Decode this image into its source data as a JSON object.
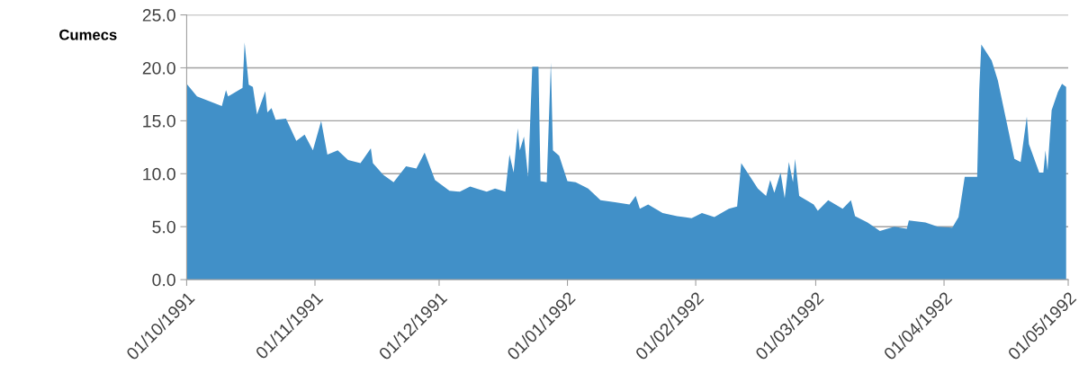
{
  "chart_data": {
    "type": "area",
    "ylabel": "Cumecs",
    "x": [
      "1991-10-01",
      "1991-10-03T12:00",
      "1991-10-09T12:00",
      "1991-10-10T12:00",
      "1991-10-11",
      "1991-10-14T12:00",
      "1991-10-15",
      "1991-10-16",
      "1991-10-17",
      "1991-10-18",
      "1991-10-20",
      "1991-10-20T12:00",
      "1991-10-21T12:00",
      "1991-10-22T12:00",
      "1991-10-25",
      "1991-10-27T12:00",
      "1991-10-29T12:00",
      "1991-10-31T12:00",
      "1991-11-02T12:00",
      "1991-11-04",
      "1991-11-06T12:00",
      "1991-11-09",
      "1991-11-12",
      "1991-11-14T12:00",
      "1991-11-15",
      "1991-11-17T12:00",
      "1991-11-20",
      "1991-11-23",
      "1991-11-25T12:00",
      "1991-11-27T12:00",
      "1991-11-30",
      "1991-12-03T12:00",
      "1991-12-06",
      "1991-12-08T12:00",
      "1991-12-10",
      "1991-12-12T12:00",
      "1991-12-14T12:00",
      "1991-12-17",
      "1991-12-18",
      "1991-12-19",
      "1991-12-20",
      "1991-12-20T12:00",
      "1991-12-21T12:00",
      "1991-12-22T12:00",
      "1991-12-23T12:00",
      "1991-12-25",
      "1991-12-25T12:00",
      "1991-12-27",
      "1991-12-28",
      "1991-12-28T12:00",
      "1991-12-30",
      "1992-01-01",
      "1992-01-03",
      "1992-01-06",
      "1992-01-09",
      "1992-01-12T12:00",
      "1992-01-16",
      "1992-01-17T12:00",
      "1992-01-18T12:00",
      "1992-01-20T12:00",
      "1992-01-24",
      "1992-01-27T12:00",
      "1992-01-31",
      "1992-02-02T12:00",
      "1992-02-05T12:00",
      "1992-02-09",
      "1992-02-11",
      "1992-02-12",
      "1992-02-13T12:00",
      "1992-02-16",
      "1992-02-18",
      "1992-02-19",
      "1992-02-20",
      "1992-02-21T12:00",
      "1992-02-22T12:00",
      "1992-02-23T12:00",
      "1992-02-24T12:00",
      "1992-02-25",
      "1992-02-26",
      "1992-02-29T12:00",
      "1992-03-01T12:00",
      "1992-03-04",
      "1992-03-07T12:00",
      "1992-03-09T12:00",
      "1992-03-10T12:00",
      "1992-03-13T12:00",
      "1992-03-16T12:00",
      "1992-03-20",
      "1992-03-23",
      "1992-03-23T12:00",
      "1992-03-27T12:00",
      "1992-03-30T12:00",
      "1992-04-03",
      "1992-04-04T12:00",
      "1992-04-06",
      "1992-04-09",
      "1992-04-09T12:00",
      "1992-04-10",
      "1992-04-12T12:00",
      "1992-04-14",
      "1992-04-16",
      "1992-04-18",
      "1992-04-19T12:00",
      "1992-04-21",
      "1992-04-21T12:00",
      "1992-04-24",
      "1992-04-25",
      "1992-04-25T12:00",
      "1992-04-26",
      "1992-04-27",
      "1992-04-28T12:00",
      "1992-04-29T12:00",
      "1992-04-30T12:00"
    ],
    "values": [
      18.5,
      17.3,
      16.4,
      17.9,
      17.3,
      18.1,
      22.4,
      18.4,
      18.2,
      15.6,
      17.8,
      15.8,
      16.2,
      15.1,
      15.2,
      13.1,
      13.7,
      12.2,
      15.0,
      11.8,
      12.2,
      11.3,
      11.0,
      12.4,
      11.0,
      9.9,
      9.2,
      10.7,
      10.5,
      12.0,
      9.4,
      8.4,
      8.3,
      8.8,
      8.6,
      8.3,
      8.6,
      8.3,
      11.8,
      10.1,
      14.3,
      12.2,
      13.5,
      9.7,
      20.1,
      20.1,
      9.3,
      9.2,
      20.5,
      12.2,
      11.7,
      9.3,
      9.2,
      8.6,
      7.5,
      7.3,
      7.1,
      7.9,
      6.7,
      7.1,
      6.3,
      6.0,
      5.8,
      6.3,
      5.9,
      6.7,
      6.9,
      11.0,
      10.1,
      8.6,
      7.9,
      9.4,
      8.2,
      10.1,
      7.7,
      11.1,
      9.2,
      11.4,
      7.9,
      7.1,
      6.5,
      7.5,
      6.7,
      7.5,
      6.0,
      5.4,
      4.6,
      5.0,
      4.8,
      5.6,
      5.4,
      5.0,
      4.9,
      5.9,
      9.7,
      9.7,
      17.9,
      22.2,
      20.7,
      18.8,
      15.1,
      11.4,
      11.1,
      15.4,
      12.8,
      10.1,
      10.1,
      12.2,
      10.3,
      16.0,
      17.7,
      18.5,
      18.2
    ],
    "color": "#4190c8",
    "xlim": [
      "1991-10-01",
      "1992-05-01"
    ],
    "xticks": [
      {
        "value": "1991-10-01",
        "label": "01/10/1991"
      },
      {
        "value": "1991-11-01",
        "label": "01/11/1991"
      },
      {
        "value": "1991-12-01",
        "label": "01/12/1991"
      },
      {
        "value": "1992-01-01",
        "label": "01/01/1992"
      },
      {
        "value": "1992-02-01",
        "label": "01/02/1992"
      },
      {
        "value": "1992-03-01",
        "label": "01/03/1992"
      },
      {
        "value": "1992-04-01",
        "label": "01/04/1992"
      },
      {
        "value": "1992-05-01",
        "label": "01/05/1992"
      }
    ],
    "ylim": [
      0,
      25
    ],
    "yticks": [
      {
        "value": 0,
        "label": "0.0"
      },
      {
        "value": 5,
        "label": "5.0"
      },
      {
        "value": 10,
        "label": "10.0"
      },
      {
        "value": 15,
        "label": "15.0"
      },
      {
        "value": 20,
        "label": "20.0"
      },
      {
        "value": 25,
        "label": "25.0"
      }
    ],
    "grid": "y"
  }
}
